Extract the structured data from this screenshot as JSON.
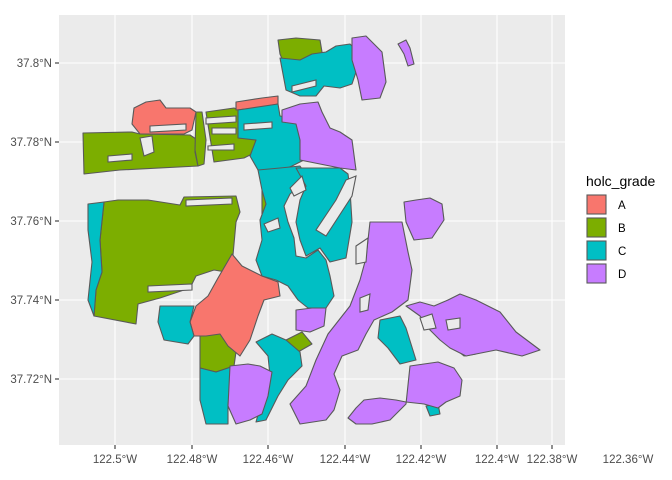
{
  "chart_data": {
    "type": "map",
    "title": "",
    "xlabel": "",
    "ylabel": "",
    "x_ticks": [
      "122.5°W",
      "122.48°W",
      "122.46°W",
      "122.44°W",
      "122.42°W",
      "122.4°W",
      "122.38°W",
      "122.36°W"
    ],
    "y_ticks": [
      "37.72°N",
      "37.74°N",
      "37.76°N",
      "37.78°N",
      "37.8°N"
    ],
    "legend": {
      "title": "holc_grade",
      "position": "right",
      "entries": [
        {
          "label": "A",
          "color": "#F8766D"
        },
        {
          "label": "B",
          "color": "#7CAE00"
        },
        {
          "label": "C",
          "color": "#00BFC4"
        },
        {
          "label": "D",
          "color": "#C77CFF"
        }
      ]
    },
    "panel_background": "#EBEBEB",
    "grid": true
  }
}
